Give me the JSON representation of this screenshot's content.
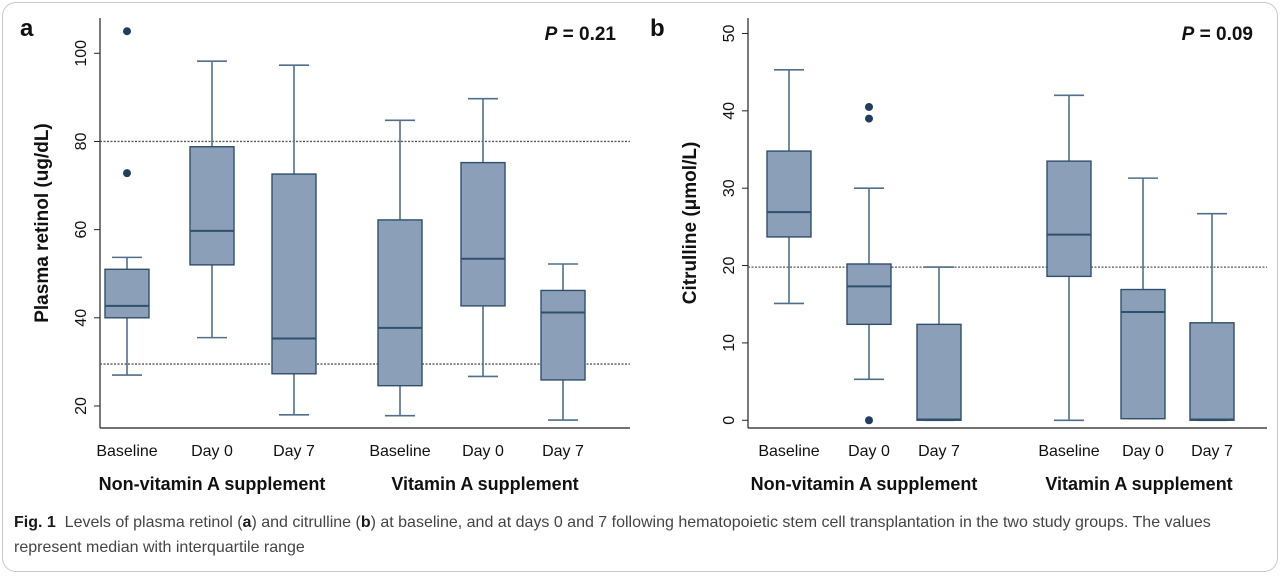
{
  "chart_data": [
    {
      "type": "box",
      "panel_label": "a",
      "p_value": "P = 0.21",
      "ylabel": "Plasma retinol (ug/dL)",
      "ylim": [
        15,
        108
      ],
      "yticks": [
        20,
        40,
        60,
        80,
        100
      ],
      "reference_lines": [
        80,
        29.5
      ],
      "groups": [
        "Non-vitamin A supplement",
        "Vitamin A supplement"
      ],
      "categories": [
        "Baseline",
        "Day 0",
        "Day 7",
        "Baseline",
        "Day 0",
        "Day 7"
      ],
      "boxes": [
        {
          "whisker_low": 27,
          "q1": 40,
          "median": 42.7,
          "q3": 51,
          "whisker_high": 53.7,
          "outliers": [
            72.8,
            105
          ]
        },
        {
          "whisker_low": 35.5,
          "q1": 52,
          "median": 59.7,
          "q3": 78.8,
          "whisker_high": 98.2,
          "outliers": []
        },
        {
          "whisker_low": 18,
          "q1": 27.3,
          "median": 35.3,
          "q3": 72.6,
          "whisker_high": 97.3,
          "outliers": []
        },
        {
          "whisker_low": 17.8,
          "q1": 24.6,
          "median": 37.7,
          "q3": 62.2,
          "whisker_high": 84.8,
          "outliers": []
        },
        {
          "whisker_low": 26.7,
          "q1": 42.7,
          "median": 53.4,
          "q3": 75.2,
          "whisker_high": 89.7,
          "outliers": []
        },
        {
          "whisker_low": 16.8,
          "q1": 25.9,
          "median": 41.2,
          "q3": 46.2,
          "whisker_high": 52.2,
          "outliers": []
        }
      ]
    },
    {
      "type": "box",
      "panel_label": "b",
      "p_value": "P = 0.09",
      "ylabel": "Citrulline (μmol/L)",
      "ylim": [
        -1,
        52
      ],
      "yticks": [
        0,
        10,
        20,
        30,
        40,
        50
      ],
      "reference_lines": [
        19.8
      ],
      "groups": [
        "Non-vitamin A supplement",
        "Vitamin A supplement"
      ],
      "categories": [
        "Baseline",
        "Day 0",
        "Day 7",
        "Baseline",
        "Day 0",
        "Day 7"
      ],
      "boxes": [
        {
          "whisker_low": 15.1,
          "q1": 23.7,
          "median": 26.9,
          "q3": 34.8,
          "whisker_high": 45.3,
          "outliers": []
        },
        {
          "whisker_low": 5.3,
          "q1": 12.4,
          "median": 17.3,
          "q3": 20.2,
          "whisker_high": 30,
          "outliers": [
            0,
            39,
            40.5
          ]
        },
        {
          "whisker_low": 0,
          "q1": 0,
          "median": 0.1,
          "q3": 12.4,
          "whisker_high": 19.8,
          "outliers": []
        },
        {
          "whisker_low": 0,
          "q1": 18.6,
          "median": 24,
          "q3": 33.5,
          "whisker_high": 42,
          "outliers": []
        },
        {
          "whisker_low": 0.2,
          "q1": 0.2,
          "median": 14,
          "q3": 16.9,
          "whisker_high": 31.3,
          "outliers": []
        },
        {
          "whisker_low": 0,
          "q1": 0,
          "median": 0.1,
          "q3": 12.6,
          "whisker_high": 26.7,
          "outliers": []
        }
      ]
    }
  ],
  "caption": {
    "fig_label": "Fig. 1",
    "text_parts": [
      "Levels of plasma retinol (",
      "a",
      ") and citrulline (",
      "b",
      ") at baseline, and at days 0 and 7 following hematopoietic stem cell transplantation in the two study groups. The values represent median with interquartile range"
    ]
  },
  "colors": {
    "box_fill": "#8ba0b8",
    "box_stroke": "#2f4f6d",
    "whisker": "#4f6f8a",
    "outlier": "#1f3e60",
    "reference_line": "#555555",
    "axis": "#222222"
  }
}
